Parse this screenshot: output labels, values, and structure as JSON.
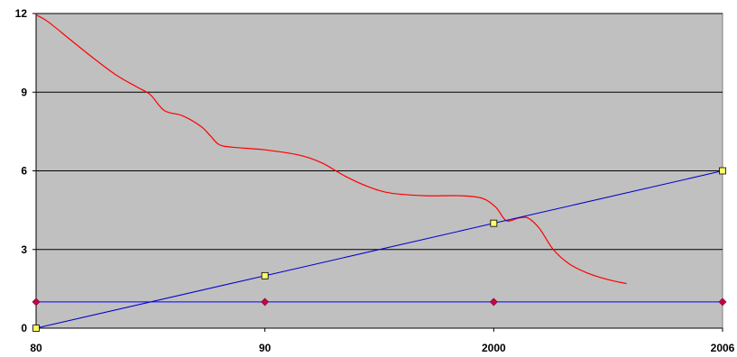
{
  "chart_data": {
    "type": "line",
    "title": "",
    "xlabel": "",
    "ylabel": "",
    "x_tick_labels": [
      "80",
      "90",
      "2000",
      "2006"
    ],
    "y_ticks": [
      0,
      3,
      6,
      9,
      12
    ],
    "ylim": [
      0,
      12
    ],
    "grid": true,
    "plot_background": "#c0c0c0",
    "series": [
      {
        "color": "#ff0000",
        "marker": "none",
        "points": [
          [
            0,
            11.95
          ],
          [
            0.5,
            11.7
          ],
          [
            1.5,
            11.0
          ],
          [
            2.5,
            10.3
          ],
          [
            3.5,
            9.65
          ],
          [
            4.4,
            9.2
          ],
          [
            5.0,
            8.9
          ],
          [
            5.6,
            8.3
          ],
          [
            6.4,
            8.1
          ],
          [
            7.2,
            7.7
          ],
          [
            7.6,
            7.35
          ],
          [
            8.0,
            7.0
          ],
          [
            8.6,
            6.9
          ],
          [
            10.0,
            6.8
          ],
          [
            11.5,
            6.6
          ],
          [
            12.5,
            6.3
          ],
          [
            13.5,
            5.8
          ],
          [
            14.5,
            5.4
          ],
          [
            15.5,
            5.15
          ],
          [
            17.0,
            5.05
          ],
          [
            18.5,
            5.05
          ],
          [
            19.5,
            4.95
          ],
          [
            20.1,
            4.6
          ],
          [
            20.55,
            4.1
          ],
          [
            21.1,
            4.2
          ],
          [
            21.5,
            4.2
          ],
          [
            22.0,
            3.8
          ],
          [
            22.6,
            3.0
          ],
          [
            23.3,
            2.45
          ],
          [
            24.1,
            2.1
          ],
          [
            25.0,
            1.85
          ],
          [
            25.8,
            1.7
          ]
        ]
      },
      {
        "color": "#0000cc",
        "marker": "square",
        "marker_color": "#ffff66",
        "points": [
          [
            0,
            0
          ],
          [
            10,
            2
          ],
          [
            20,
            4
          ],
          [
            30,
            6
          ]
        ]
      },
      {
        "color": "#0000ff",
        "marker": "diamond",
        "marker_color": "#cc0044",
        "points": [
          [
            0,
            1
          ],
          [
            10,
            1
          ],
          [
            20,
            1
          ],
          [
            30,
            1
          ]
        ]
      }
    ]
  }
}
